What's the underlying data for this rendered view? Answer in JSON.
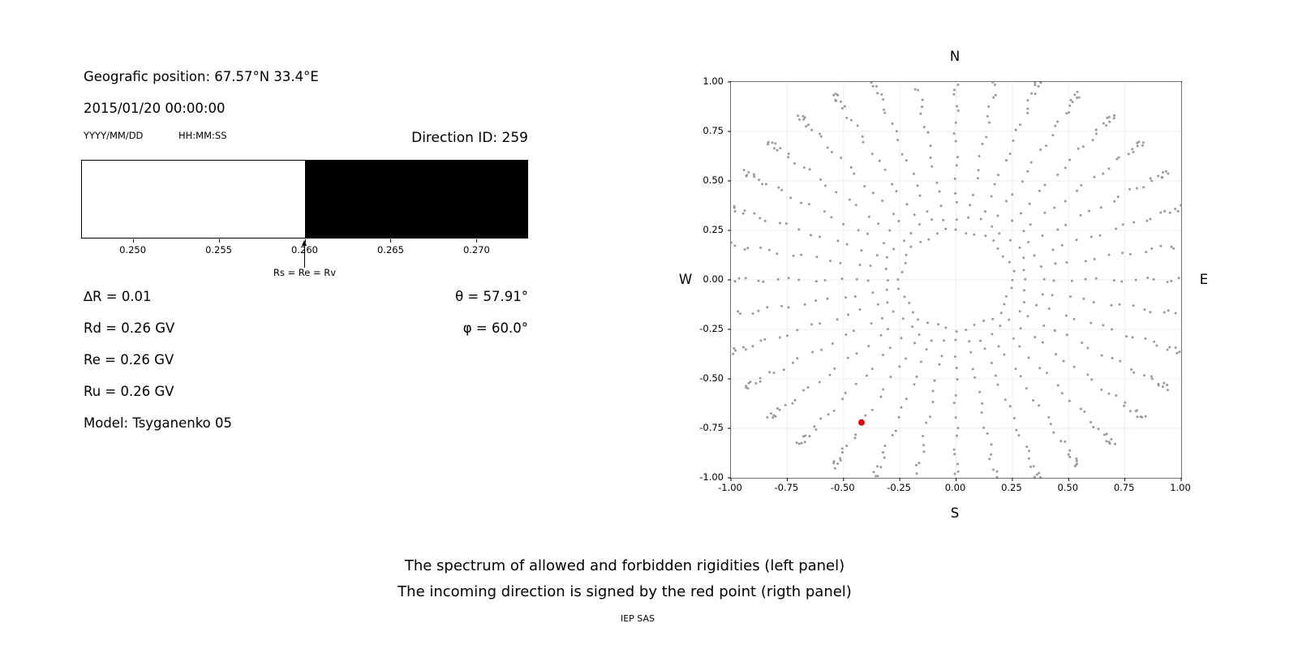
{
  "left_panel": {
    "geo_position": "Geografic position: 67.57°N 33.4°E",
    "datetime": "2015/01/20 00:00:00",
    "date_format": "YYYY/MM/DD",
    "time_format": "HH:MM:SS",
    "direction_id": "Direction ID: 259",
    "params_left": [
      "∆R = 0.01",
      "Rd = 0.26 GV",
      "Re = 0.26 GV",
      "Ru = 0.26 GV",
      "Model: Tsyganenko 05"
    ],
    "params_right": [
      "θ = 57.91°",
      "φ = 60.0°"
    ]
  },
  "chart_data": [
    {
      "name": "rigidity-spectrum",
      "type": "bar",
      "xlim": [
        0.247,
        0.273
      ],
      "tick_values": [
        0.25,
        0.255,
        0.26,
        0.265,
        0.27
      ],
      "tick_labels": [
        "0.250",
        "0.255",
        "0.260",
        "0.265",
        "0.270"
      ],
      "regions": [
        {
          "label": "allowed",
          "from": 0.247,
          "to": 0.26,
          "color": "#ffffff"
        },
        {
          "label": "forbidden",
          "from": 0.26,
          "to": 0.273,
          "color": "#000000"
        }
      ],
      "marker": {
        "value": 0.26,
        "label": "Rs = Re = Rv"
      }
    },
    {
      "name": "incoming-direction-map",
      "type": "scatter",
      "xlim": [
        -1,
        1
      ],
      "ylim": [
        -1,
        1
      ],
      "tick_values": [
        -1.0,
        -0.75,
        -0.5,
        -0.25,
        0.0,
        0.25,
        0.5,
        0.75,
        1.0
      ],
      "x_tick_labels": [
        "-1.00",
        "-0.75",
        "-0.50",
        "-0.25",
        "0.00",
        "0.25",
        "0.50",
        "0.75",
        "1.00"
      ],
      "y_tick_labels": [
        "-1.00",
        "-0.75",
        "-0.50",
        "-0.25",
        "0.00",
        "0.25",
        "0.50",
        "0.75",
        "1.00"
      ],
      "compass": {
        "top": "N",
        "bottom": "S",
        "left": "W",
        "right": "E"
      },
      "grid_color": "#ececec",
      "point_color": "#999999",
      "spokes": {
        "count": 36,
        "start_deg": 0,
        "step_deg": 10,
        "radii": [
          0.25,
          0.315,
          0.38,
          0.445,
          0.51,
          0.572,
          0.632,
          0.69,
          0.745,
          0.797,
          0.845,
          0.889,
          0.928,
          0.962,
          0.991,
          1.015,
          1.034,
          1.049,
          1.061,
          1.07,
          1.077,
          1.082
        ]
      },
      "red_point": {
        "x": -0.42,
        "y": -0.72,
        "color": "#e8000b"
      }
    }
  ],
  "caption": {
    "line1": "The spectrum of allowed and forbidden rigidities (left panel)",
    "line2": "The incoming direction is signed by the red point (rigth panel)",
    "credit": "IEP SAS"
  }
}
